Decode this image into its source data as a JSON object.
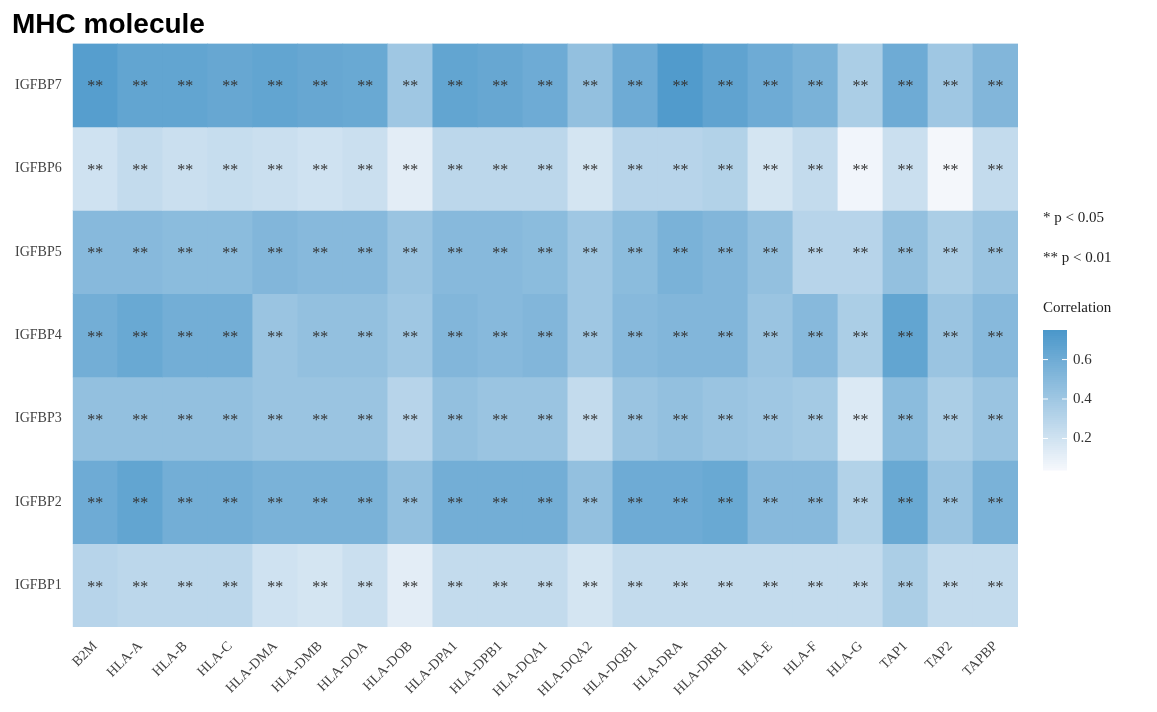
{
  "chart_data": {
    "type": "heatmap",
    "title": "MHC molecule",
    "clabel": "Correlation",
    "categories": [
      "B2M",
      "HLA-A",
      "HLA-B",
      "HLA-C",
      "HLA-DMA",
      "HLA-DMB",
      "HLA-DOA",
      "HLA-DOB",
      "HLA-DPA1",
      "HLA-DPB1",
      "HLA-DQA1",
      "HLA-DQA2",
      "HLA-DQB1",
      "HLA-DRA",
      "HLA-DRB1",
      "HLA-E",
      "HLA-F",
      "HLA-G",
      "TAP1",
      "TAP2",
      "TAPBP"
    ],
    "y_categories": [
      "IGFBP7",
      "IGFBP6",
      "IGFBP5",
      "IGFBP4",
      "IGFBP3",
      "IGFBP2",
      "IGFBP1"
    ],
    "cells": [
      [
        0.7,
        0.65,
        0.65,
        0.63,
        0.65,
        0.63,
        0.62,
        0.4,
        0.65,
        0.63,
        0.6,
        0.45,
        0.6,
        0.72,
        0.66,
        0.6,
        0.55,
        0.35,
        0.6,
        0.4,
        0.52
      ],
      [
        0.2,
        0.25,
        0.22,
        0.24,
        0.22,
        0.2,
        0.22,
        0.12,
        0.28,
        0.28,
        0.28,
        0.18,
        0.3,
        0.3,
        0.32,
        0.18,
        0.25,
        0.06,
        0.22,
        0.05,
        0.25
      ],
      [
        0.5,
        0.5,
        0.48,
        0.48,
        0.52,
        0.5,
        0.5,
        0.42,
        0.5,
        0.5,
        0.48,
        0.4,
        0.48,
        0.55,
        0.52,
        0.45,
        0.3,
        0.3,
        0.45,
        0.35,
        0.42
      ],
      [
        0.58,
        0.62,
        0.58,
        0.58,
        0.42,
        0.45,
        0.45,
        0.4,
        0.52,
        0.5,
        0.52,
        0.4,
        0.5,
        0.52,
        0.52,
        0.42,
        0.5,
        0.35,
        0.65,
        0.42,
        0.5
      ],
      [
        0.45,
        0.45,
        0.45,
        0.45,
        0.42,
        0.42,
        0.42,
        0.3,
        0.45,
        0.42,
        0.42,
        0.25,
        0.42,
        0.45,
        0.42,
        0.4,
        0.38,
        0.15,
        0.48,
        0.35,
        0.42
      ],
      [
        0.6,
        0.65,
        0.58,
        0.58,
        0.55,
        0.55,
        0.55,
        0.45,
        0.58,
        0.58,
        0.58,
        0.45,
        0.6,
        0.6,
        0.62,
        0.5,
        0.5,
        0.32,
        0.62,
        0.42,
        0.55
      ],
      [
        0.3,
        0.28,
        0.28,
        0.28,
        0.2,
        0.18,
        0.22,
        0.12,
        0.25,
        0.25,
        0.25,
        0.18,
        0.25,
        0.25,
        0.25,
        0.25,
        0.25,
        0.25,
        0.35,
        0.25,
        0.25
      ]
    ],
    "cell_labels": [
      [
        "**",
        "**",
        "**",
        "**",
        "**",
        "**",
        "**",
        "**",
        "**",
        "**",
        "**",
        "**",
        "**",
        "**",
        "**",
        "**",
        "**",
        "**",
        "**",
        "**",
        "**"
      ],
      [
        "**",
        "**",
        "**",
        "**",
        "**",
        "**",
        "**",
        "**",
        "**",
        "**",
        "**",
        "**",
        "**",
        "**",
        "**",
        "**",
        "**",
        "**",
        "**",
        "**",
        "**"
      ],
      [
        "**",
        "**",
        "**",
        "**",
        "**",
        "**",
        "**",
        "**",
        "**",
        "**",
        "**",
        "**",
        "**",
        "**",
        "**",
        "**",
        "**",
        "**",
        "**",
        "**",
        "**"
      ],
      [
        "**",
        "**",
        "**",
        "**",
        "**",
        "**",
        "**",
        "**",
        "**",
        "**",
        "**",
        "**",
        "**",
        "**",
        "**",
        "**",
        "**",
        "**",
        "**",
        "**",
        "**"
      ],
      [
        "**",
        "**",
        "**",
        "**",
        "**",
        "**",
        "**",
        "**",
        "**",
        "**",
        "**",
        "**",
        "**",
        "**",
        "**",
        "**",
        "**",
        "**",
        "**",
        "**",
        "**"
      ],
      [
        "**",
        "**",
        "**",
        "**",
        "**",
        "**",
        "**",
        "**",
        "**",
        "**",
        "**",
        "**",
        "**",
        "**",
        "**",
        "**",
        "**",
        "**",
        "**",
        "**",
        "**"
      ],
      [
        "**",
        "**",
        "**",
        "**",
        "**",
        "**",
        "**",
        "**",
        "**",
        "**",
        "**",
        "**",
        "**",
        "**",
        "**",
        "**",
        "**",
        "**",
        "**",
        "**",
        "**"
      ]
    ],
    "clim": [
      0.04,
      0.75
    ],
    "cticks": [
      0.2,
      0.4,
      0.6
    ],
    "annotations": [
      "* p < 0.05",
      "** p < 0.01"
    ]
  }
}
